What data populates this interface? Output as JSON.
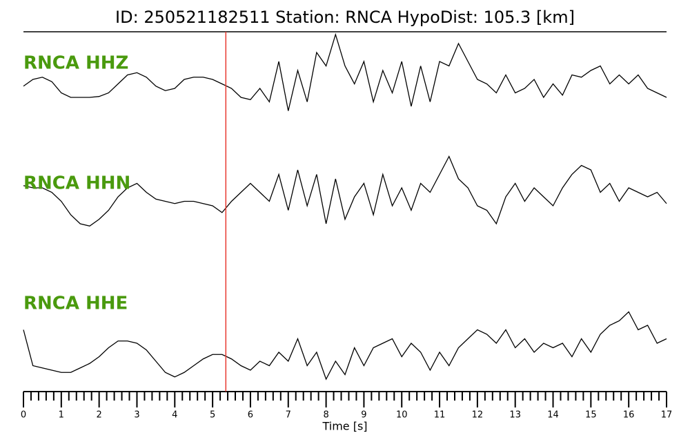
{
  "chart_data": {
    "type": "line",
    "title": "ID: 250521182511   Station: RNCA   HypoDist:   105.3 [km]",
    "xlabel": "Time [s]",
    "xlim": [
      0,
      17
    ],
    "ylim": [
      -1,
      1
    ],
    "xticks": [
      0,
      1,
      2,
      3,
      4,
      5,
      6,
      7,
      8,
      9,
      10,
      11,
      12,
      13,
      14,
      15,
      16,
      17
    ],
    "xminorticks": [
      0.2,
      0.4,
      0.6,
      0.8,
      1.2,
      1.4,
      1.6,
      1.8,
      2.2,
      2.4,
      2.6,
      2.8,
      3.2,
      3.4,
      3.6,
      3.8,
      4.2,
      4.4,
      4.6,
      4.8,
      5.2,
      5.4,
      5.6,
      5.8,
      6.2,
      6.4,
      6.6,
      6.8,
      7.2,
      7.4,
      7.6,
      7.8,
      8.2,
      8.4,
      8.6,
      8.8,
      9.2,
      9.4,
      9.6,
      9.8,
      10.2,
      10.4,
      10.6,
      10.8,
      11.2,
      11.4,
      11.6,
      11.8,
      12.2,
      12.4,
      12.6,
      12.8,
      13.2,
      13.4,
      13.6,
      13.8,
      14.2,
      14.4,
      14.6,
      14.8,
      15.2,
      15.4,
      15.6,
      15.8,
      16.2,
      16.4,
      16.6,
      16.8
    ],
    "marker": {
      "x": 5.35,
      "color": "#e8392f"
    },
    "label_color": "#4a9a0e",
    "x": [
      0,
      0.25,
      0.5,
      0.75,
      1,
      1.25,
      1.5,
      1.75,
      2,
      2.25,
      2.5,
      2.75,
      3,
      3.25,
      3.5,
      3.75,
      4,
      4.25,
      4.5,
      4.75,
      5,
      5.25,
      5.5,
      5.75,
      6,
      6.25,
      6.5,
      6.75,
      7,
      7.25,
      7.5,
      7.75,
      8,
      8.25,
      8.5,
      8.75,
      9,
      9.25,
      9.5,
      9.75,
      10,
      10.25,
      10.5,
      10.75,
      11,
      11.25,
      11.5,
      11.75,
      12,
      12.25,
      12.5,
      12.75,
      13,
      13.25,
      13.5,
      13.75,
      14,
      14.25,
      14.5,
      14.75,
      15,
      15.25,
      15.5,
      15.75,
      16,
      16.25,
      16.5,
      16.75,
      17
    ],
    "series": [
      {
        "name": "RNCA HHZ",
        "color": "#000000",
        "values": [
          -0.15,
          0,
          0.05,
          -0.05,
          -0.3,
          -0.4,
          -0.4,
          -0.4,
          -0.38,
          -0.3,
          -0.1,
          0.1,
          0.15,
          0.05,
          -0.15,
          -0.25,
          -0.2,
          0,
          0.05,
          0.05,
          0,
          -0.1,
          -0.2,
          -0.4,
          -0.45,
          -0.2,
          -0.5,
          0.4,
          -0.7,
          0.2,
          -0.5,
          0.6,
          0.3,
          1.0,
          0.3,
          -0.1,
          0.4,
          -0.5,
          0.2,
          -0.3,
          0.4,
          -0.6,
          0.3,
          -0.5,
          0.4,
          0.3,
          0.8,
          0.4,
          0,
          -0.1,
          -0.3,
          0.1,
          -0.3,
          -0.2,
          0,
          -0.4,
          -0.1,
          -0.35,
          0.1,
          0.05,
          0.2,
          0.3,
          -0.1,
          0.1,
          -0.1,
          0.1,
          -0.2,
          -0.3,
          -0.4
        ]
      },
      {
        "name": "RNCA HHN",
        "color": "#000000",
        "values": [
          0.25,
          0.2,
          0.2,
          0.1,
          -0.1,
          -0.4,
          -0.6,
          -0.65,
          -0.5,
          -0.3,
          0,
          0.2,
          0.3,
          0.1,
          -0.05,
          -0.1,
          -0.15,
          -0.1,
          -0.1,
          -0.15,
          -0.2,
          -0.35,
          -0.1,
          0.1,
          0.3,
          0.1,
          -0.1,
          0.5,
          -0.3,
          0.6,
          -0.2,
          0.5,
          -0.6,
          0.4,
          -0.5,
          0,
          0.3,
          -0.4,
          0.5,
          -0.2,
          0.2,
          -0.3,
          0.3,
          0.1,
          0.5,
          0.9,
          0.4,
          0.2,
          -0.2,
          -0.3,
          -0.6,
          0,
          0.3,
          -0.1,
          0.2,
          0,
          -0.2,
          0.2,
          0.5,
          0.7,
          0.6,
          0.1,
          0.3,
          -0.1,
          0.2,
          0.1,
          0,
          0.1,
          -0.15
        ]
      },
      {
        "name": "RNCA HHE",
        "color": "#000000",
        "values": [
          0.5,
          -0.3,
          -0.35,
          -0.4,
          -0.45,
          -0.45,
          -0.35,
          -0.25,
          -0.1,
          0.1,
          0.25,
          0.25,
          0.2,
          0.05,
          -0.2,
          -0.45,
          -0.55,
          -0.45,
          -0.3,
          -0.15,
          -0.05,
          -0.05,
          -0.15,
          -0.3,
          -0.4,
          -0.2,
          -0.3,
          0,
          -0.2,
          0.3,
          -0.3,
          0,
          -0.6,
          -0.2,
          -0.5,
          0.1,
          -0.3,
          0.1,
          0.2,
          0.3,
          -0.1,
          0.2,
          0,
          -0.4,
          0,
          -0.3,
          0.1,
          0.3,
          0.5,
          0.4,
          0.2,
          0.5,
          0.1,
          0.3,
          0,
          0.2,
          0.1,
          0.2,
          -0.1,
          0.3,
          0,
          0.4,
          0.6,
          0.7,
          0.9,
          0.5,
          0.6,
          0.2,
          0.3
        ]
      }
    ]
  }
}
